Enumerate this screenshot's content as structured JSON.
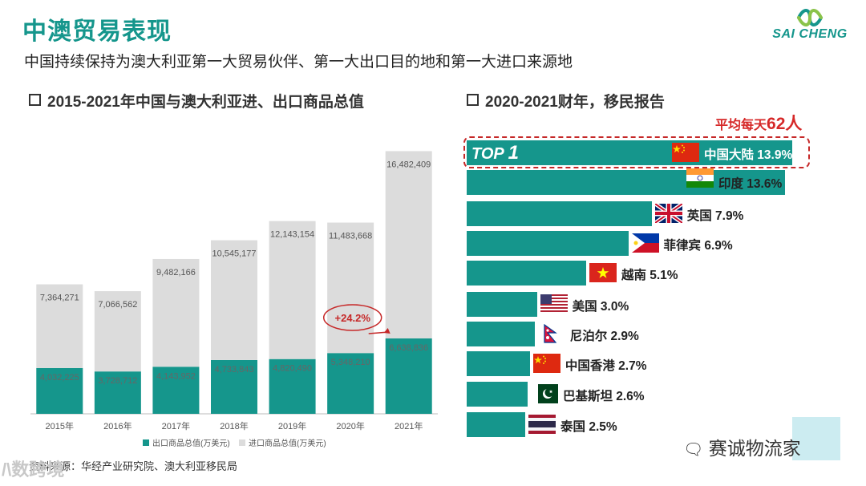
{
  "header": {
    "title": "中澳贸易表现",
    "subtitle": "中国持续保持为澳大利亚第一大贸易伙伴、第一大出口目的地和第一大进口来源地",
    "logo_text": "SAI CHENG"
  },
  "left_section": {
    "heading": "2015-2021年中国与澳大利亚进、出口商品总值",
    "source": "资料来源：华经产业研究院、澳大利亚移民局",
    "watermark": "/\\数跨境"
  },
  "right_section": {
    "heading": "2020-2021财年，移民报告",
    "avg_prefix": "平均每天",
    "avg_value": "62人",
    "top_label": "TOP",
    "top_rank": "1",
    "watermark": "赛诚物流家"
  },
  "colors": {
    "accent": "#15968c",
    "import_gray": "#dcdcdc",
    "highlight_red": "#c62828"
  },
  "chart_data": [
    {
      "type": "bar",
      "stacked": true,
      "title": "2015-2021年中国与澳大利亚进、出口商品总值",
      "categories": [
        "2015年",
        "2016年",
        "2017年",
        "2018年",
        "2019年",
        "2020年",
        "2021年"
      ],
      "series": [
        {
          "name": "出口商品总值(万美元)",
          "color": "#15968c",
          "values": [
            4032225,
            3728712,
            4143952,
            4733843,
            4820490,
            5348210,
            6638836
          ],
          "labels": [
            "4,032,225",
            "3,728,712",
            "4,143,952",
            "4,733,843",
            "4,820,490",
            "5,348,210",
            "6,638,836"
          ]
        },
        {
          "name": "进口商品总值(万美元)",
          "color": "#dcdcdc",
          "values": [
            7364271,
            7066562,
            9482166,
            10545177,
            12143154,
            11483668,
            16482409
          ],
          "labels": [
            "7,364,271",
            "7,066,562",
            "9,482,166",
            "10,545,177",
            "12,143,154",
            "11,483,668",
            "16,482,409"
          ]
        }
      ],
      "annotation": {
        "text": "+24.2%",
        "category": "2021年"
      },
      "ylim": [
        0,
        24000000
      ],
      "legend": "bottom"
    },
    {
      "type": "bar",
      "orientation": "horizontal",
      "title": "2020-2021财年，移民报告",
      "categories": [
        "中国大陆",
        "印度",
        "英国",
        "菲律宾",
        "越南",
        "美国",
        "尼泊尔",
        "中国香港",
        "巴基斯坦",
        "泰国"
      ],
      "flags": [
        "china-flag-icon",
        "india-flag-icon",
        "uk-flag-icon",
        "philippines-flag-icon",
        "vietnam-flag-icon",
        "usa-flag-icon",
        "nepal-flag-icon",
        "china-flag-icon",
        "pakistan-flag-icon",
        "thailand-flag-icon"
      ],
      "values": [
        13.9,
        13.6,
        7.9,
        6.9,
        5.1,
        3.0,
        2.9,
        2.7,
        2.6,
        2.5
      ],
      "labels": [
        "中国大陆 13.9%",
        "印度  13.6%",
        "英国  7.9%",
        "菲律宾  6.9%",
        "越南  5.1%",
        "美国  3.0%",
        "尼泊尔  2.9%",
        "中国香港 2.7%",
        "巴基斯坦  2.6%",
        "泰国  2.5%"
      ],
      "unit": "%"
    }
  ]
}
